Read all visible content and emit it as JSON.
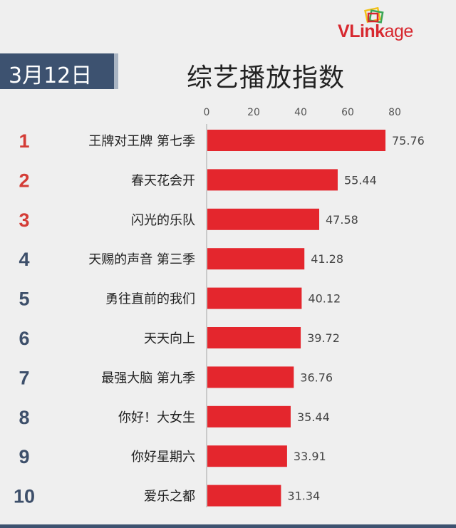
{
  "logo": {
    "v": "V",
    "link": "Link",
    "age": "age"
  },
  "header": {
    "date": "3月12日",
    "title": "综艺播放指数"
  },
  "colors": {
    "bar": "#e4262d",
    "rank_top": "#d43c36",
    "rank_rest": "#3d4f6a",
    "badge": "#3d5270"
  },
  "chart_data": {
    "type": "bar",
    "orientation": "horizontal",
    "title": "综艺播放指数",
    "xlim": [
      0,
      80
    ],
    "xticks": [
      0,
      20,
      40,
      60,
      80
    ],
    "ranks": [
      "1",
      "2",
      "3",
      "4",
      "5",
      "6",
      "7",
      "8",
      "9",
      "10"
    ],
    "categories": [
      "王牌对王牌 第七季",
      "春天花会开",
      "闪光的乐队",
      "天赐的声音 第三季",
      "勇往直前的我们",
      "天天向上",
      "最强大脑 第九季",
      "你好！大女生",
      "你好星期六",
      "爱乐之都"
    ],
    "values": [
      75.76,
      55.44,
      47.58,
      41.28,
      40.12,
      39.72,
      36.76,
      35.44,
      33.91,
      31.34
    ],
    "value_labels": [
      "75.76",
      "55.44",
      "47.58",
      "41.28",
      "40.12",
      "39.72",
      "36.76",
      "35.44",
      "33.91",
      "31.34"
    ],
    "grid": false
  }
}
